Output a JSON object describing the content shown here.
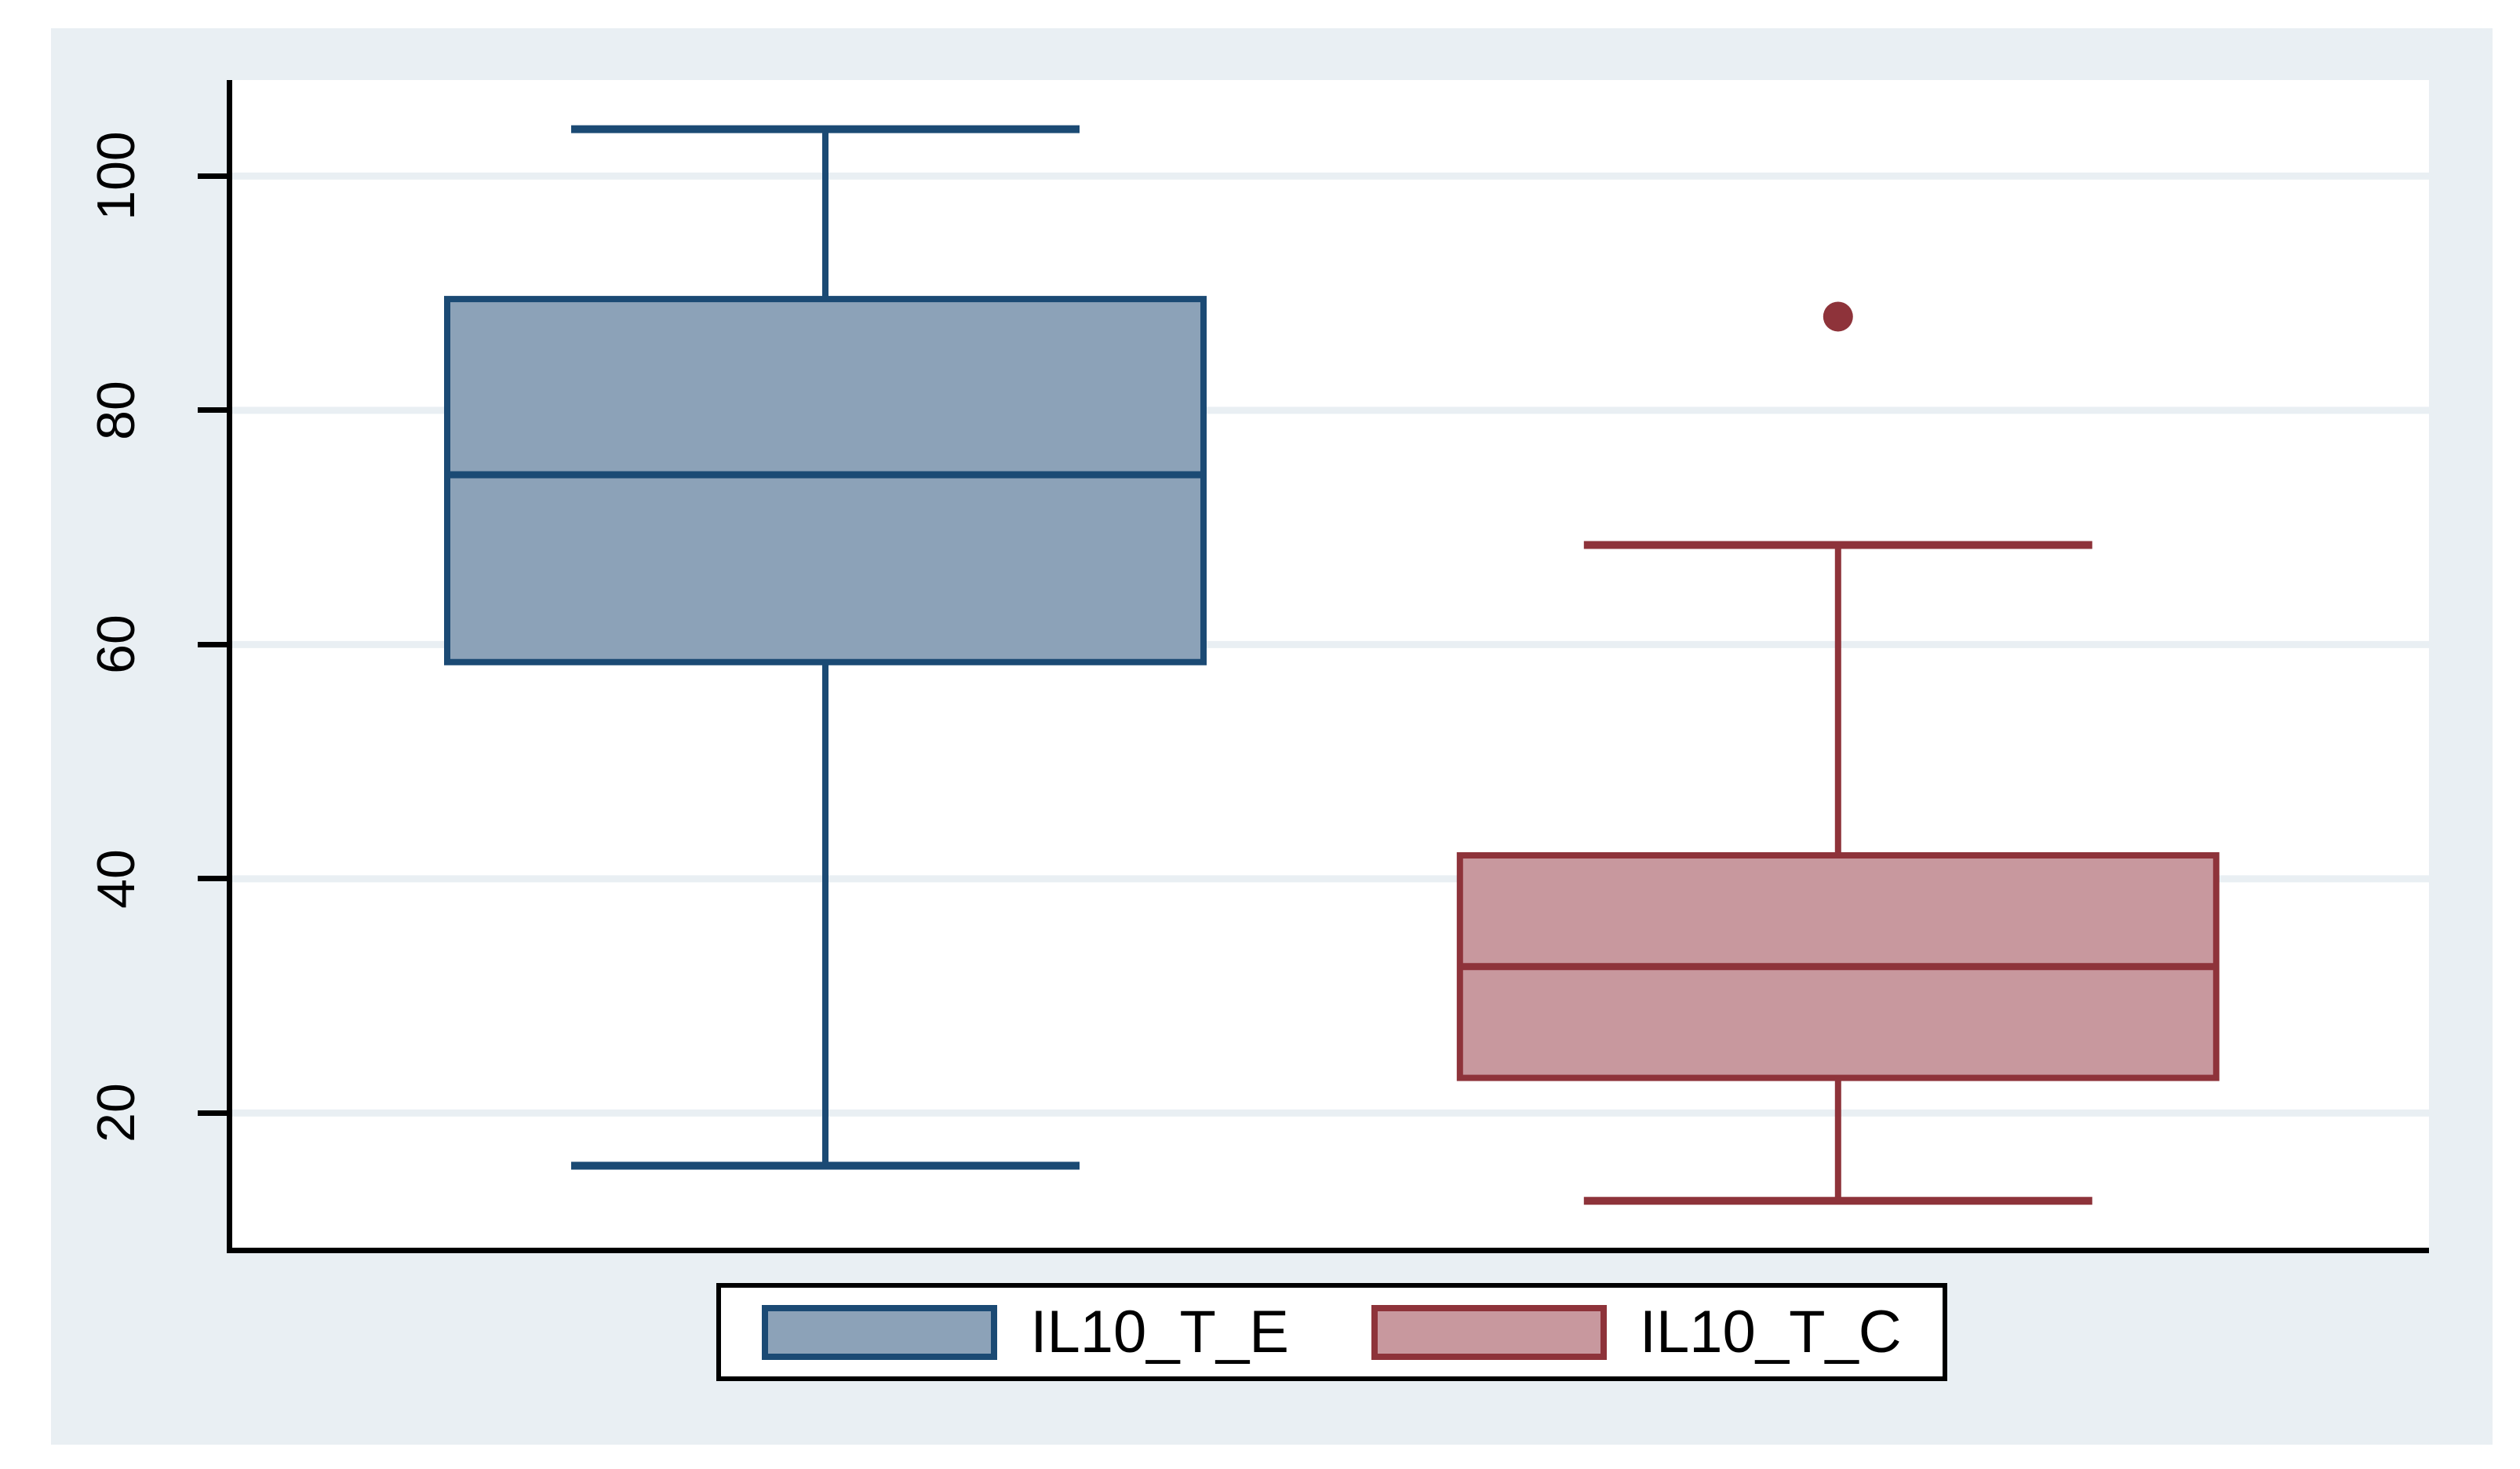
{
  "chart_data": {
    "type": "box",
    "title": "",
    "xlabel": "",
    "ylabel": "",
    "y_ticks": [
      "20",
      "40",
      "60",
      "80",
      "100"
    ],
    "ylim": [
      8.5,
      108.2
    ],
    "grid": true,
    "grid_axis": "y",
    "legend_position": "bottom",
    "y_tick_label_rotation": -90,
    "series": [
      {
        "name": "IL10_T_E",
        "fill_color": "#8ca2b8",
        "border_color": "#1b4a74",
        "whisker_low": 15.5,
        "q1": 58.5,
        "median": 74.5,
        "q3": 89.5,
        "whisker_high": 104,
        "outliers": []
      },
      {
        "name": "IL10_T_C",
        "fill_color": "#c8989e",
        "border_color": "#8e333a",
        "whisker_low": 12.5,
        "q1": 23,
        "median": 32.5,
        "q3": 42,
        "whisker_high": 68.5,
        "outliers": [
          88
        ]
      }
    ]
  },
  "colors": {
    "graph_background": "#e9eff3",
    "plot_background": "#ffffff",
    "gridline": "#e9eff3",
    "axis": "#000000",
    "legend_border": "#000000"
  },
  "legend": {
    "items": [
      {
        "label": "IL10_T_E"
      },
      {
        "label": "IL10_T_C"
      }
    ]
  }
}
